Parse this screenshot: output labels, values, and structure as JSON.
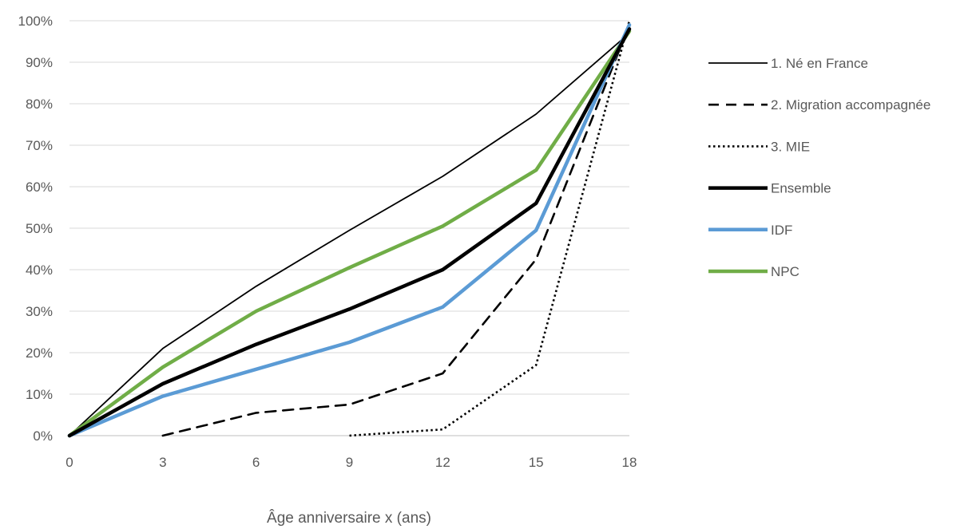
{
  "chart_data": {
    "type": "line",
    "title": "",
    "xlabel": "Âge anniversaire x (ans)",
    "ylabel": "",
    "x_ticks": [
      "0",
      "3",
      "6",
      "9",
      "12",
      "15",
      "18"
    ],
    "y_ticks": [
      "0%",
      "10%",
      "20%",
      "30%",
      "40%",
      "50%",
      "60%",
      "70%",
      "80%",
      "90%",
      "100%"
    ],
    "xlim": [
      0,
      18
    ],
    "ylim": [
      0,
      100
    ],
    "grid": "horizontal",
    "legend_position": "right",
    "series": [
      {
        "name": "1. Né en France",
        "color": "#000000",
        "dash": "solid",
        "weight": "thin",
        "x": [
          0,
          3,
          6,
          9,
          12,
          15,
          18
        ],
        "values": [
          0,
          21,
          36,
          49.5,
          62.5,
          77.5,
          97
        ]
      },
      {
        "name": "2. Migration accompagnée",
        "color": "#000000",
        "dash": "dashed",
        "weight": "medium",
        "x": [
          3,
          6,
          9,
          12,
          15,
          18
        ],
        "values": [
          0,
          5.5,
          7.5,
          15,
          42.5,
          99
        ]
      },
      {
        "name": "3. MIE",
        "color": "#000000",
        "dash": "dotted",
        "weight": "medium",
        "x": [
          9,
          12,
          15,
          18
        ],
        "values": [
          0,
          1.5,
          17,
          100
        ]
      },
      {
        "name": "Ensemble",
        "color": "#000000",
        "dash": "solid",
        "weight": "thick",
        "x": [
          0,
          3,
          6,
          9,
          12,
          15,
          18
        ],
        "values": [
          0,
          12.5,
          22,
          30.5,
          40,
          56,
          98
        ]
      },
      {
        "name": "IDF",
        "color": "#5b9bd5",
        "dash": "solid",
        "weight": "thick",
        "x": [
          0,
          3,
          6,
          9,
          12,
          15,
          18
        ],
        "values": [
          0,
          9.5,
          16,
          22.5,
          31,
          49.5,
          99
        ]
      },
      {
        "name": "NPC",
        "color": "#70ad47",
        "dash": "solid",
        "weight": "thick",
        "x": [
          0,
          3,
          6,
          9,
          12,
          15,
          18
        ],
        "values": [
          0,
          16.5,
          30,
          40.5,
          50.5,
          64,
          97.5
        ]
      }
    ]
  }
}
